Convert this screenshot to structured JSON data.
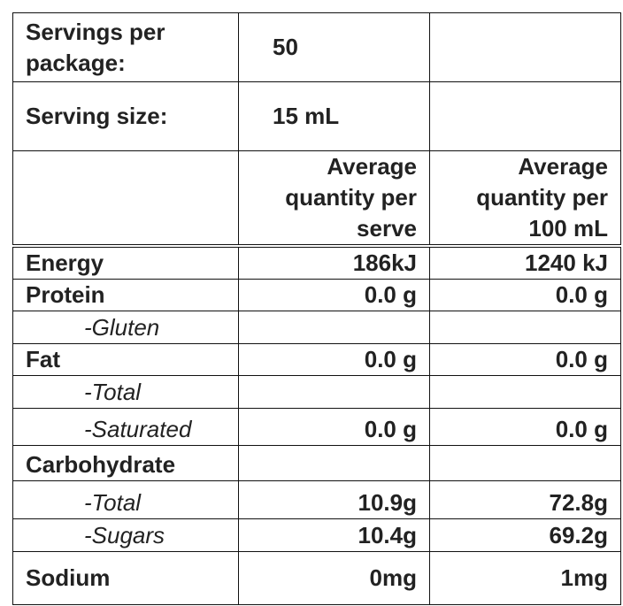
{
  "table": {
    "rows": [
      [
        "Servings per package:",
        "50"
      ],
      [
        "Serving size:",
        "15 mL"
      ],
      [
        null,
        "Average quantity per serve",
        "Average quantity per 100 mL"
      ],
      [
        "Energy",
        "186kJ",
        "1240 kJ"
      ],
      [
        "Protein",
        "0.0 g",
        "0.0 g"
      ],
      [
        "-Gluten"
      ],
      [
        "Fat",
        "0.0 g",
        "0.0 g"
      ],
      [
        "-Total"
      ],
      [
        "-Saturated",
        "0.0 g",
        "0.0 g"
      ],
      [
        "Carbohydrate"
      ],
      [
        "-Total",
        "10.9g",
        "72.8g"
      ],
      [
        "-Sugars",
        "10.4g",
        "69.2g"
      ],
      [
        "Sodium",
        "0mg",
        "1mg"
      ]
    ]
  }
}
